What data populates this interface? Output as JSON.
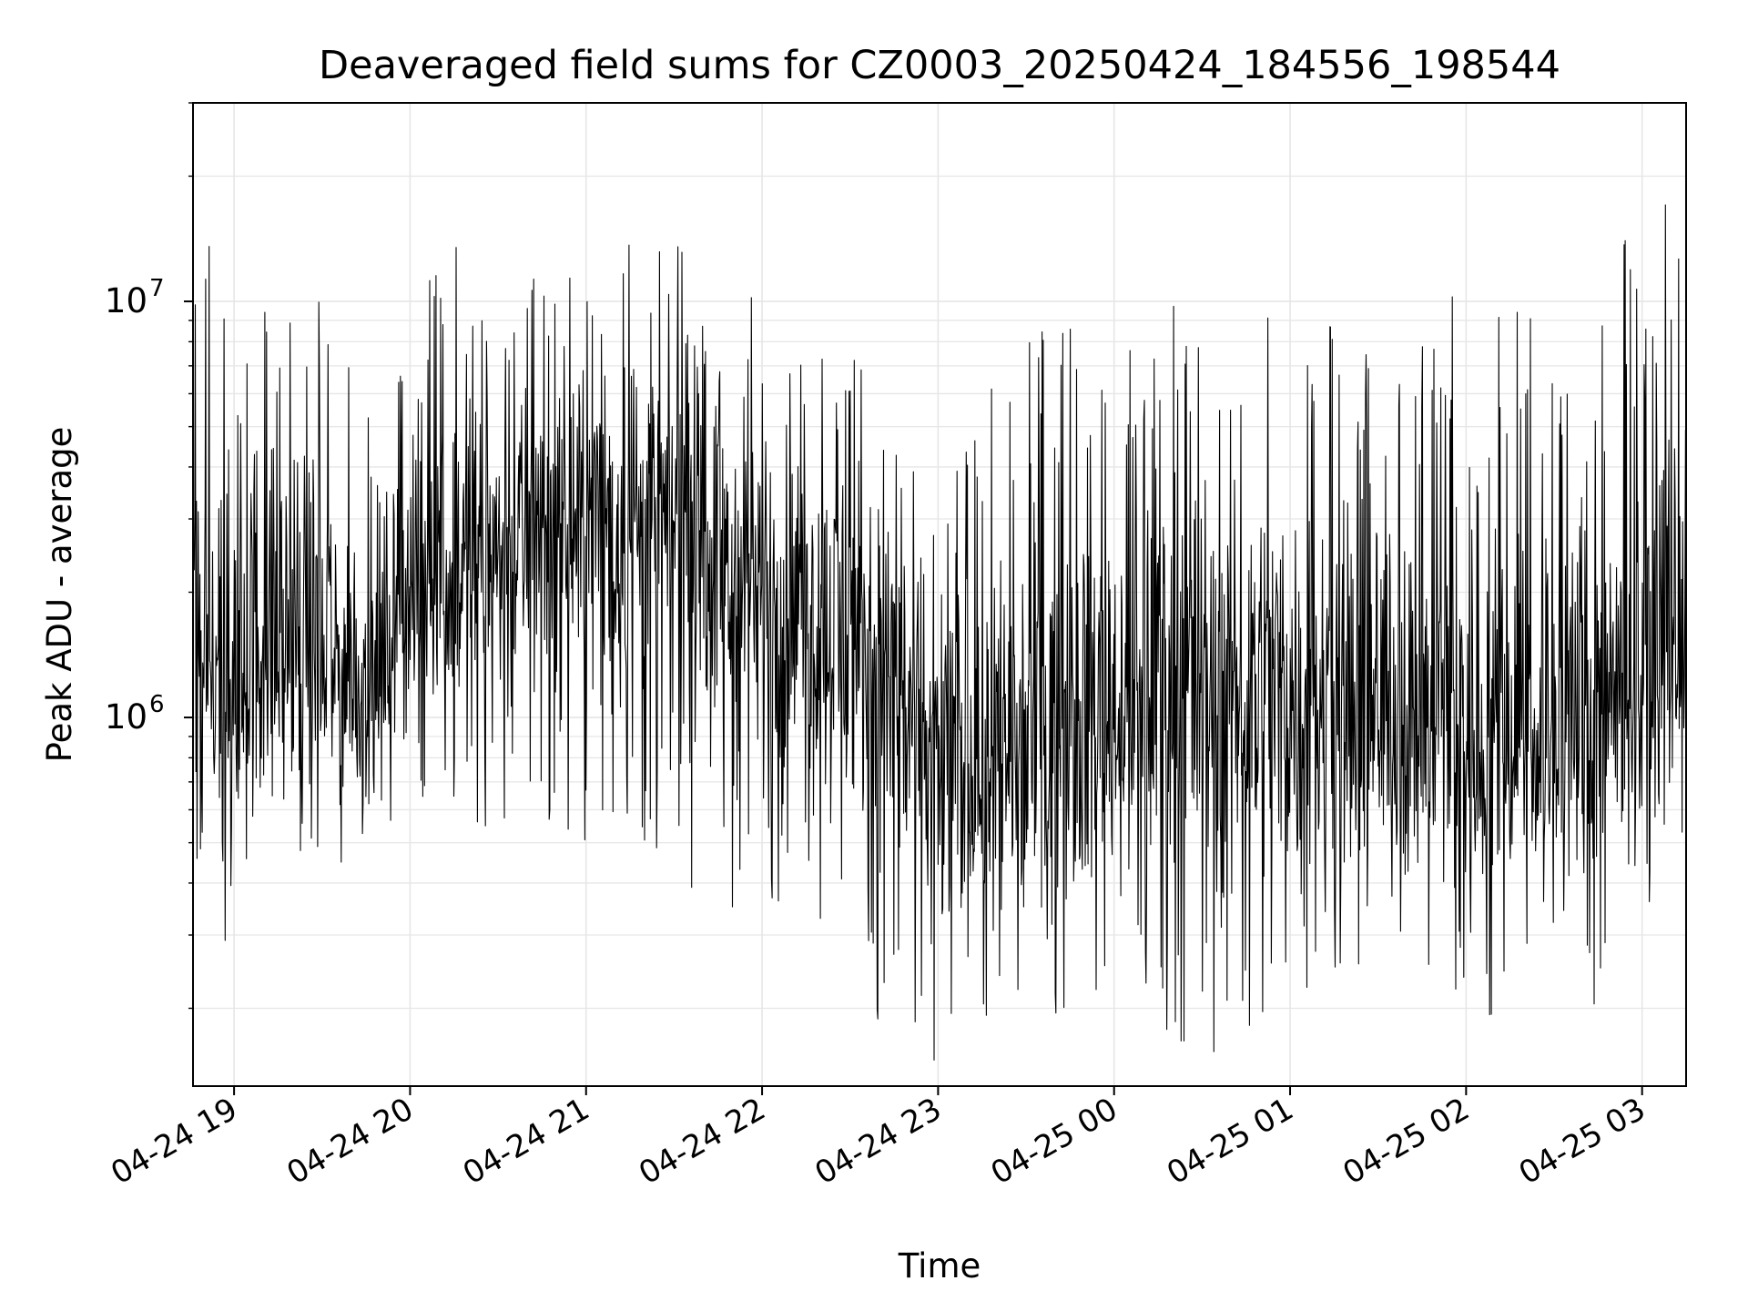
{
  "chart_data": {
    "type": "line",
    "title": "Deaveraged field sums for CZ0003_20250424_184556_198544",
    "xlabel": "Time",
    "ylabel": "Peak ADU - average",
    "y_scale": "log",
    "xlim": [
      "2025-04-24 18:46",
      "2025-04-25 03:15"
    ],
    "ylim": [
      130000,
      30000000
    ],
    "x_ticks": [
      "04-24 19",
      "04-24 20",
      "04-24 21",
      "04-24 22",
      "04-24 23",
      "04-25 00",
      "04-25 01",
      "04-25 02",
      "04-25 03"
    ],
    "y_ticks": [
      {
        "base": "10",
        "exp": "6",
        "value": 1000000
      },
      {
        "base": "10",
        "exp": "7",
        "value": 10000000
      }
    ],
    "grid": true,
    "line_color": "#000000",
    "series": [
      {
        "x": [
          "2025-04-24 18:46",
          "2025-04-24 19:00",
          "2025-04-24 19:15",
          "2025-04-24 19:30",
          "2025-04-24 19:45",
          "2025-04-24 20:00",
          "2025-04-24 20:15",
          "2025-04-24 20:30",
          "2025-04-24 20:45",
          "2025-04-24 21:00",
          "2025-04-24 21:15",
          "2025-04-24 21:30",
          "2025-04-24 21:45",
          "2025-04-24 22:00",
          "2025-04-24 22:15",
          "2025-04-24 22:30",
          "2025-04-24 22:45",
          "2025-04-24 23:00",
          "2025-04-24 23:15",
          "2025-04-24 23:30",
          "2025-04-24 23:45",
          "2025-04-25 00:00",
          "2025-04-25 00:15",
          "2025-04-25 00:30",
          "2025-04-25 00:45",
          "2025-04-25 01:00",
          "2025-04-25 01:15",
          "2025-04-25 01:30",
          "2025-04-25 01:45",
          "2025-04-25 02:00",
          "2025-04-25 02:15",
          "2025-04-25 02:30",
          "2025-04-25 02:45",
          "2025-04-25 03:00",
          "2025-04-25 03:15"
        ],
        "y_median": [
          1500000,
          1400000,
          1500000,
          1300000,
          1200000,
          1900000,
          2300000,
          2500000,
          2700000,
          3000000,
          3100000,
          2900000,
          2500000,
          2100000,
          1800000,
          1500000,
          1200000,
          750000,
          800000,
          850000,
          900000,
          1000000,
          1100000,
          1100000,
          1200000,
          1100000,
          1000000,
          950000,
          1000000,
          900000,
          900000,
          850000,
          1000000,
          1300000,
          1600000
        ],
        "y_max": [
          13000000,
          17000000,
          9000000,
          10500000,
          6000000,
          8000000,
          17500000,
          12000000,
          13500000,
          12000000,
          17000000,
          14500000,
          10000000,
          11000000,
          7000000,
          8000000,
          7000000,
          4000000,
          6000000,
          8000000,
          9500000,
          9500000,
          10000000,
          12000000,
          10000000,
          9000000,
          10500000,
          9500000,
          10000000,
          11000000,
          11000000,
          8000000,
          8000000,
          24000000,
          15000000
        ],
        "y_min": [
          350000,
          260000,
          300000,
          330000,
          450000,
          600000,
          550000,
          420000,
          530000,
          480000,
          470000,
          400000,
          310000,
          320000,
          410000,
          200000,
          170000,
          130000,
          140000,
          150000,
          180000,
          210000,
          170000,
          150000,
          170000,
          210000,
          190000,
          240000,
          200000,
          170000,
          210000,
          260000,
          200000,
          330000,
          460000
        ]
      }
    ]
  }
}
